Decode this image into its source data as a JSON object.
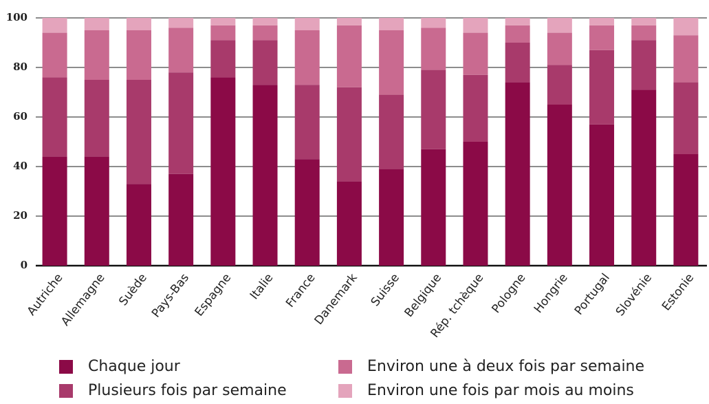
{
  "chart_data": {
    "type": "stacked_bar",
    "categories": [
      "Autriche",
      "Allemagne",
      "Suède",
      "Pays-Bas",
      "Espagne",
      "Italie",
      "France",
      "Danemark",
      "Suisse",
      "Belgique",
      "Rép. tchèque",
      "Pologne",
      "Hongrie",
      "Portugal",
      "Slovénie",
      "Estonie"
    ],
    "series": [
      {
        "name": "Chaque jour",
        "color": "#8b0a47",
        "values": [
          44,
          44,
          33,
          37,
          76,
          73,
          43,
          34,
          39,
          47,
          50,
          74,
          65,
          57,
          71,
          45
        ]
      },
      {
        "name": "Plusieurs fois par semaine",
        "color": "#a83a6b",
        "values": [
          32,
          31,
          42,
          41,
          15,
          18,
          30,
          38,
          30,
          32,
          27,
          16,
          16,
          30,
          20,
          29
        ]
      },
      {
        "name": "Environ une à deux fois par semaine",
        "color": "#c96a90",
        "values": [
          18,
          20,
          20,
          18,
          6,
          6,
          22,
          25,
          26,
          17,
          17,
          7,
          13,
          10,
          6,
          19
        ]
      },
      {
        "name": "Environ une fois par mois au moins",
        "color": "#e4a4bc",
        "values": [
          6,
          5,
          5,
          4,
          3,
          3,
          5,
          3,
          5,
          4,
          6,
          3,
          6,
          3,
          3,
          7
        ]
      }
    ],
    "ylim": [
      0,
      100
    ],
    "yticks": [
      0,
      20,
      40,
      60,
      80,
      100
    ],
    "grid": true
  }
}
